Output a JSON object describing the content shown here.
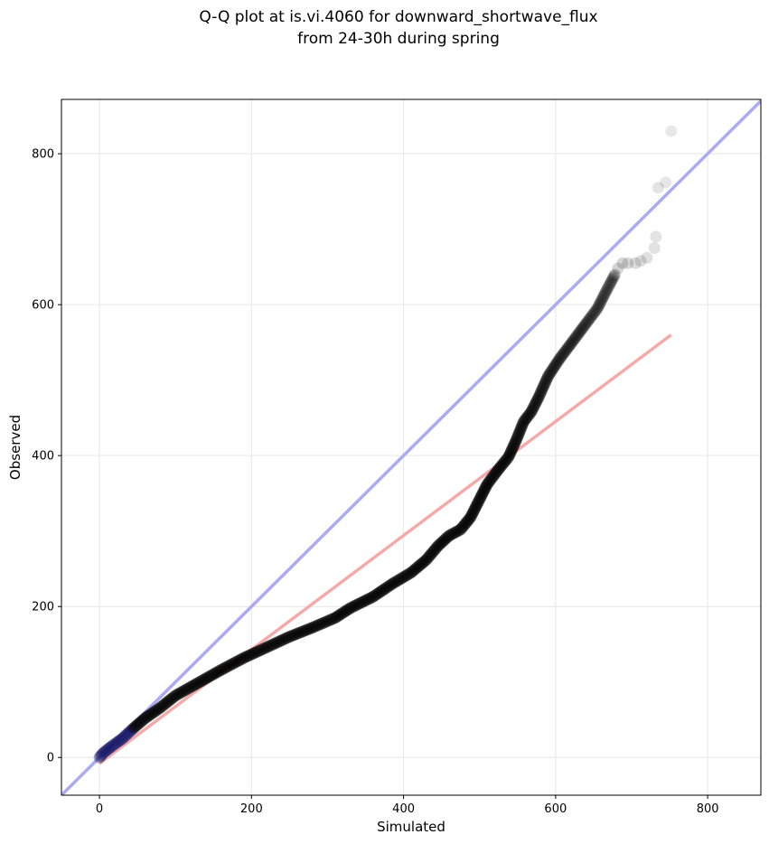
{
  "chart_data": {
    "type": "scatter",
    "title_lines": [
      "Q-Q plot at is.vi.4060 for downward_shortwave_flux",
      "from 24-30h during spring"
    ],
    "xlabel": "Simulated",
    "ylabel": "Observed",
    "xlim": [
      -50,
      870
    ],
    "ylim": [
      -50,
      872
    ],
    "xticks": [
      0,
      200,
      400,
      600,
      800
    ],
    "yticks": [
      0,
      200,
      400,
      600,
      800
    ],
    "grid": true,
    "reference_lines": [
      {
        "kind": "identity",
        "color": "#aaaaf5",
        "from": [
          -50,
          -50
        ],
        "to": [
          870,
          870
        ]
      },
      {
        "kind": "fit",
        "color": "#f5aaaa",
        "from": [
          0,
          -8
        ],
        "to": [
          752,
          560
        ]
      }
    ],
    "colors": {
      "points": "#000000",
      "low_points": "#1a1a66",
      "grid": "#e6e6e6"
    },
    "quantile_curve": [
      [
        0,
        0
      ],
      [
        5,
        6
      ],
      [
        15,
        14
      ],
      [
        30,
        25
      ],
      [
        45,
        39
      ],
      [
        60,
        52
      ],
      [
        80,
        66
      ],
      [
        100,
        82
      ],
      [
        130,
        99
      ],
      [
        160,
        116
      ],
      [
        190,
        132
      ],
      [
        220,
        146
      ],
      [
        250,
        160
      ],
      [
        280,
        172
      ],
      [
        310,
        185
      ],
      [
        330,
        198
      ],
      [
        360,
        213
      ],
      [
        385,
        230
      ],
      [
        410,
        245
      ],
      [
        430,
        262
      ],
      [
        445,
        280
      ],
      [
        460,
        294
      ],
      [
        475,
        302
      ],
      [
        488,
        318
      ],
      [
        500,
        342
      ],
      [
        510,
        362
      ],
      [
        525,
        382
      ],
      [
        538,
        398
      ],
      [
        548,
        420
      ],
      [
        558,
        445
      ],
      [
        568,
        458
      ],
      [
        578,
        478
      ],
      [
        590,
        505
      ],
      [
        605,
        528
      ],
      [
        620,
        548
      ],
      [
        640,
        575
      ],
      [
        655,
        595
      ],
      [
        665,
        615
      ],
      [
        678,
        640
      ]
    ],
    "upper_tail": [
      [
        682,
        648
      ],
      [
        688,
        655
      ],
      [
        695,
        655
      ],
      [
        705,
        655
      ],
      [
        712,
        658
      ],
      [
        720,
        662
      ],
      [
        730,
        675
      ],
      [
        732,
        690
      ],
      [
        735,
        755
      ],
      [
        745,
        762
      ],
      [
        752,
        830
      ]
    ]
  }
}
